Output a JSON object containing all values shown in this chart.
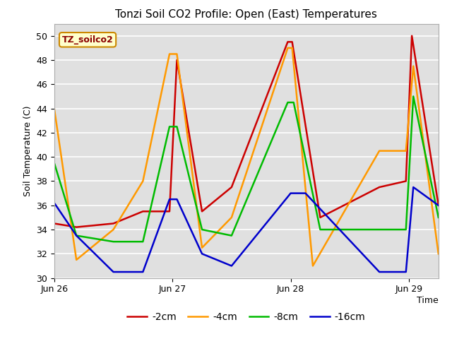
{
  "title": "Tonzi Soil CO2 Profile: Open (East) Temperatures",
  "xlabel": "Time",
  "ylabel": "Soil Temperature (C)",
  "ylim": [
    30,
    51
  ],
  "yticks": [
    30,
    32,
    34,
    36,
    38,
    40,
    42,
    44,
    46,
    48,
    50
  ],
  "xtick_labels": [
    "Jun 26",
    "Jun 27",
    "Jun 28",
    "Jun 29"
  ],
  "xtick_positions": [
    0,
    8,
    16,
    24
  ],
  "background_color": "#e0e0e0",
  "legend_label": "TZ_soilco2",
  "series": {
    "2cm": {
      "color": "#cc0000",
      "label": "-2cm",
      "x": [
        0,
        1.5,
        4,
        6,
        7.8,
        8.3,
        10,
        12,
        15.8,
        16.1,
        18,
        22,
        23.8,
        24.2,
        26
      ],
      "y": [
        34.5,
        34.2,
        34.5,
        35.5,
        35.5,
        48.0,
        35.5,
        37.5,
        49.5,
        49.5,
        35.0,
        37.5,
        38.0,
        50.0,
        36.0
      ]
    },
    "4cm": {
      "color": "#ff9900",
      "label": "-4cm",
      "x": [
        0,
        1.5,
        4,
        6,
        7.8,
        8.3,
        10,
        12,
        15.8,
        16.1,
        17.5,
        22,
        23.8,
        24.3,
        26
      ],
      "y": [
        44.0,
        31.5,
        34.0,
        38.0,
        48.5,
        48.5,
        32.5,
        35.0,
        49.0,
        49.0,
        31.0,
        40.5,
        40.5,
        47.5,
        32.0
      ]
    },
    "8cm": {
      "color": "#00bb00",
      "label": "-8cm",
      "x": [
        0,
        1.5,
        4,
        6,
        7.8,
        8.3,
        10,
        12,
        15.8,
        16.2,
        18,
        22,
        23.8,
        24.3,
        26
      ],
      "y": [
        39.5,
        33.5,
        33.0,
        33.0,
        42.5,
        42.5,
        34.0,
        33.5,
        44.5,
        44.5,
        34.0,
        34.0,
        34.0,
        45.0,
        35.0
      ]
    },
    "16cm": {
      "color": "#0000cc",
      "label": "-16cm",
      "x": [
        0,
        1.5,
        4,
        6,
        7.8,
        8.3,
        10,
        12,
        16,
        17,
        22,
        23.8,
        24.3,
        26
      ],
      "y": [
        36.2,
        33.5,
        30.5,
        30.5,
        36.5,
        36.5,
        32.0,
        31.0,
        37.0,
        37.0,
        30.5,
        30.5,
        37.5,
        36.0
      ]
    }
  }
}
